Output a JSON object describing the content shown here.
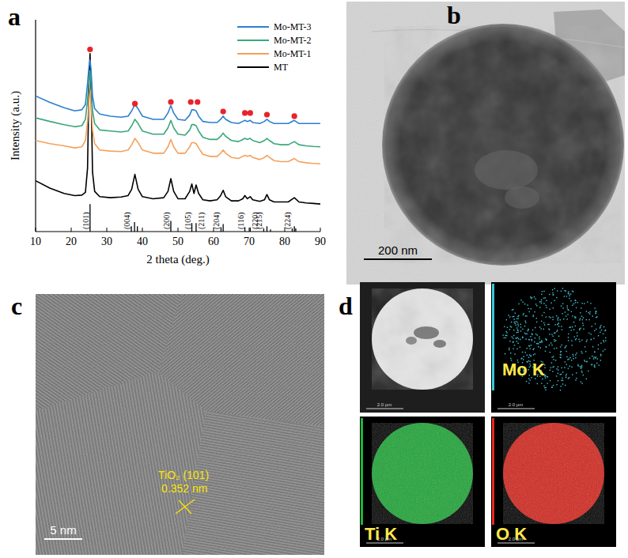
{
  "chart_data": {
    "type": "line",
    "panel_label": "a",
    "x_label": "2 theta (deg.)",
    "y_label": "Intensity (a.u.)",
    "xlim": [
      10,
      90
    ],
    "xticks": [
      10,
      20,
      30,
      40,
      50,
      60,
      70,
      80,
      90
    ],
    "ylim": [
      0,
      100
    ],
    "tick_labels": "x",
    "legend": "top-right",
    "x": [
      10,
      14,
      18,
      21,
      23,
      24,
      24.6,
      25.0,
      25.3,
      25.6,
      26,
      26.6,
      28,
      31,
      34,
      36,
      37,
      37.9,
      38.8,
      40,
      43,
      46,
      47.2,
      48.0,
      48.8,
      50,
      52,
      53.3,
      53.9,
      54.5,
      55.1,
      55.8,
      57,
      59,
      61,
      62.0,
      62.7,
      63.4,
      65,
      67,
      68.2,
      68.8,
      69.5,
      70.3,
      71,
      73,
      74.3,
      75.0,
      75.7,
      77,
      79,
      81,
      82.7,
      84,
      86,
      88,
      90
    ],
    "series": [
      {
        "name": "Mo-MT-3",
        "color": "#2c7fd0",
        "values": [
          64,
          61,
          58.5,
          57,
          57.5,
          60,
          70,
          78,
          81,
          76,
          64,
          58,
          55.5,
          54.5,
          54,
          54.5,
          57,
          60,
          58,
          54.5,
          53,
          53,
          56,
          59.5,
          56,
          53,
          52.5,
          55,
          57.5,
          57.5,
          57,
          54.5,
          52,
          51.5,
          51.5,
          53,
          54.5,
          53,
          51.5,
          51,
          52,
          52.5,
          52,
          52.5,
          51.5,
          51,
          52,
          53,
          52,
          51,
          51,
          51,
          52.5,
          51,
          51,
          51,
          51
        ]
      },
      {
        "name": "Mo-MT-2",
        "color": "#3aa77a",
        "values": [
          53.7,
          52,
          50.5,
          49.5,
          50,
          53,
          62,
          72,
          76,
          70,
          57,
          51,
          48,
          47.5,
          47,
          47.5,
          50,
          53,
          51,
          47.5,
          46,
          46,
          49,
          52.5,
          49,
          46,
          45.5,
          48,
          50.5,
          50.5,
          50,
          47.5,
          44.5,
          43.5,
          43.5,
          45,
          46.5,
          45,
          43,
          42.5,
          43.5,
          44,
          43.5,
          44,
          43,
          42,
          43,
          44,
          43,
          41.5,
          41,
          41,
          42.5,
          41,
          40.5,
          40.2,
          40
        ]
      },
      {
        "name": "Mo-MT-1",
        "color": "#f4a15c",
        "values": [
          43,
          41.5,
          40.5,
          39.5,
          40,
          43,
          52,
          62,
          67,
          60,
          48,
          41.5,
          38.5,
          38,
          37.8,
          38.5,
          41,
          44,
          42,
          38.5,
          37,
          37,
          40,
          43.5,
          40,
          37,
          37,
          40,
          42,
          42,
          41.5,
          39.5,
          36.5,
          35.5,
          35.5,
          37,
          38.5,
          37,
          35,
          34.5,
          35.5,
          36,
          35.5,
          36,
          35,
          34,
          35,
          36,
          35,
          33.5,
          33,
          33,
          34.5,
          33,
          32.5,
          32.2,
          32
        ]
      },
      {
        "name": "MT",
        "color": "#000000",
        "values": [
          24,
          20.5,
          18,
          17,
          17.2,
          18.5,
          30,
          70,
          84,
          65,
          28,
          19,
          16.5,
          16,
          16.3,
          17,
          20,
          27,
          20,
          16.5,
          15.5,
          16,
          19,
          25,
          19,
          15.5,
          15.5,
          19,
          22.5,
          18,
          22,
          18,
          15,
          14.5,
          15,
          17,
          19.5,
          16.5,
          14.5,
          14.5,
          15.5,
          17,
          15.5,
          16.5,
          15,
          14.3,
          15,
          17.5,
          15,
          14,
          14,
          14,
          16,
          14,
          13.5,
          13.3,
          13
        ]
      }
    ],
    "peak_markers": {
      "marker": "circle",
      "color": "#e8242a",
      "x": [
        25.3,
        37.9,
        48.0,
        53.6,
        55.5,
        62.7,
        68.8,
        70.3,
        75.0,
        82.7
      ],
      "y": [
        86,
        60.4,
        61.2,
        61.2,
        61.2,
        56.7,
        56,
        56,
        55.2,
        54.5
      ]
    },
    "reference_peaks": {
      "color": "#000000",
      "x": [
        25.3,
        36.9,
        37.8,
        38.6,
        48.0,
        53.9,
        55.1,
        62.1,
        62.7,
        68.8,
        70.3,
        74.1,
        75.0,
        76.0,
        82.1,
        82.7,
        83.1
      ],
      "values": [
        13,
        2.5,
        4.5,
        2.5,
        5,
        4,
        4,
        2,
        3.5,
        2,
        2,
        1.5,
        2.5,
        1,
        1.5,
        2.5,
        1.5
      ],
      "labels": [
        "(101)",
        null,
        "(004)",
        null,
        "(200)",
        "(105)",
        "(211)",
        null,
        "(204)",
        "(116)",
        "(220)",
        null,
        "(215)",
        null,
        null,
        "(224)",
        null
      ]
    }
  },
  "tem_image": {
    "panel_label": "b",
    "scale_bar": "200 nm"
  },
  "hrtem_image": {
    "panel_label": "c",
    "scale_bar": "5 nm",
    "annotation": "TiO₂ (101)",
    "d_spacing": "0.352 nm"
  },
  "eds_mapping": {
    "panel_label": "d",
    "scale_bar": "2.0 µm",
    "maps": [
      "Mo K",
      "Ti K",
      "O K"
    ]
  }
}
